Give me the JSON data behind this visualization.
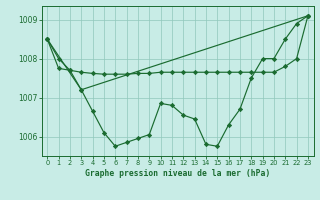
{
  "title": "Graphe pression niveau de la mer (hPa)",
  "bg_color": "#c8ece6",
  "grid_color": "#90c8bc",
  "line_color": "#1a6b30",
  "xlim": [
    -0.5,
    23.5
  ],
  "ylim": [
    1005.5,
    1009.35
  ],
  "yticks": [
    1006,
    1007,
    1008,
    1009
  ],
  "xticks": [
    0,
    1,
    2,
    3,
    4,
    5,
    6,
    7,
    8,
    9,
    10,
    11,
    12,
    13,
    14,
    15,
    16,
    17,
    18,
    19,
    20,
    21,
    22,
    23
  ],
  "series1_x": [
    0,
    1,
    2,
    3,
    4,
    5,
    6,
    7,
    8,
    9,
    10,
    11,
    12,
    13,
    14,
    15,
    16,
    17,
    18,
    19,
    20,
    21,
    22,
    23
  ],
  "series1_y": [
    1008.5,
    1008.0,
    1007.7,
    1007.2,
    1006.65,
    1006.1,
    1005.75,
    1005.85,
    1005.95,
    1006.05,
    1006.85,
    1006.8,
    1006.55,
    1006.45,
    1005.8,
    1005.75,
    1006.3,
    1006.7,
    1007.5,
    1008.0,
    1008.0,
    1008.5,
    1008.9,
    1009.1
  ],
  "series2_x": [
    0,
    1,
    2,
    3,
    4,
    5,
    6,
    7,
    8,
    9,
    10,
    11,
    12,
    13,
    14,
    15,
    16,
    17,
    18,
    19,
    20,
    21,
    22,
    23
  ],
  "series2_y": [
    1008.5,
    1007.75,
    1007.7,
    1007.65,
    1007.62,
    1007.6,
    1007.6,
    1007.6,
    1007.62,
    1007.62,
    1007.65,
    1007.65,
    1007.65,
    1007.65,
    1007.65,
    1007.65,
    1007.65,
    1007.65,
    1007.65,
    1007.65,
    1007.65,
    1007.8,
    1008.0,
    1009.1
  ],
  "series3_x": [
    0,
    3,
    23
  ],
  "series3_y": [
    1008.5,
    1007.2,
    1009.1
  ]
}
